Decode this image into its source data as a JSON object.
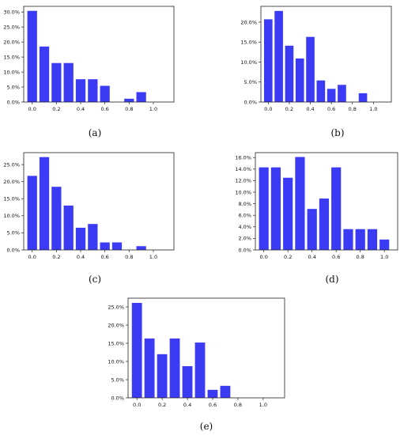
{
  "chart_data": [
    {
      "type": "bar",
      "caption": "(a)",
      "x": [
        0.0,
        0.1,
        0.2,
        0.3,
        0.4,
        0.5,
        0.6,
        0.7,
        0.8,
        0.9
      ],
      "values": [
        30.4,
        18.5,
        13.0,
        13.0,
        7.6,
        7.6,
        5.4,
        0.0,
        1.1,
        3.3
      ],
      "xticks": [
        "0.0",
        "0.2",
        "0.4",
        "0.6",
        "0.8",
        "1.0"
      ],
      "xtick_values": [
        0.0,
        0.2,
        0.4,
        0.6,
        0.8,
        1.0
      ],
      "yticks": [
        "0.0%",
        "5.0%",
        "10.0%",
        "15.0%",
        "20.0%",
        "25.0%",
        "30.0%"
      ],
      "ytick_values": [
        0,
        5,
        10,
        15,
        20,
        25,
        30
      ],
      "xlim": [
        -0.07,
        1.17
      ],
      "ylim": [
        0,
        31.9
      ],
      "bar_color": "#3b3bf6"
    },
    {
      "type": "bar",
      "caption": "(b)",
      "x": [
        0.0,
        0.1,
        0.2,
        0.3,
        0.4,
        0.5,
        0.6,
        0.7,
        0.8,
        0.9
      ],
      "values": [
        20.7,
        22.8,
        14.1,
        10.9,
        16.3,
        5.4,
        3.3,
        4.3,
        0.0,
        2.2
      ],
      "xticks": [
        "0.0",
        "0.2",
        "0.4",
        "0.6",
        "0.8",
        "1.0"
      ],
      "xtick_values": [
        0.0,
        0.2,
        0.4,
        0.6,
        0.8,
        1.0
      ],
      "yticks": [
        "0.0%",
        "5.0%",
        "10.0%",
        "15.0%",
        "20.0%"
      ],
      "ytick_values": [
        0,
        5,
        10,
        15,
        20
      ],
      "xlim": [
        -0.07,
        1.17
      ],
      "ylim": [
        0,
        23.95
      ],
      "bar_color": "#3b3bf6"
    },
    {
      "type": "bar",
      "caption": "(c)",
      "x": [
        0.0,
        0.1,
        0.2,
        0.3,
        0.4,
        0.5,
        0.6,
        0.7,
        0.8,
        0.9
      ],
      "values": [
        21.7,
        27.2,
        18.5,
        13.0,
        6.5,
        7.6,
        2.2,
        2.2,
        0.0,
        1.1
      ],
      "xticks": [
        "0.0",
        "0.2",
        "0.4",
        "0.6",
        "0.8",
        "1.0"
      ],
      "xtick_values": [
        0.0,
        0.2,
        0.4,
        0.6,
        0.8,
        1.0
      ],
      "yticks": [
        "0.0%",
        "5.0%",
        "10.0%",
        "15.0%",
        "20.0%",
        "25.0%"
      ],
      "ytick_values": [
        0,
        5,
        10,
        15,
        20,
        25
      ],
      "xlim": [
        -0.07,
        1.17
      ],
      "ylim": [
        0,
        28.5
      ],
      "bar_color": "#3b3bf6"
    },
    {
      "type": "bar",
      "caption": "(d)",
      "x": [
        0.0,
        0.1,
        0.2,
        0.3,
        0.4,
        0.5,
        0.6,
        0.7,
        0.8,
        0.9,
        1.0
      ],
      "values": [
        14.3,
        14.3,
        12.5,
        16.1,
        7.1,
        8.9,
        14.3,
        3.6,
        3.6,
        3.6,
        1.8
      ],
      "xticks": [
        "0.0",
        "0.2",
        "0.4",
        "0.6",
        "0.8",
        "1.0"
      ],
      "xtick_values": [
        0.0,
        0.2,
        0.4,
        0.6,
        0.8,
        1.0
      ],
      "yticks": [
        "0.0%",
        "2.0%",
        "4.0%",
        "6.0%",
        "8.0%",
        "10.0%",
        "12.0%",
        "14.0%",
        "16.0%"
      ],
      "ytick_values": [
        0,
        2,
        4,
        6,
        8,
        10,
        12,
        14,
        16
      ],
      "xlim": [
        -0.07,
        1.11
      ],
      "ylim": [
        0,
        16.85
      ],
      "bar_color": "#3b3bf6"
    },
    {
      "type": "bar",
      "caption": "(e)",
      "x": [
        0.0,
        0.1,
        0.2,
        0.3,
        0.4,
        0.5,
        0.6,
        0.7,
        0.8,
        0.9
      ],
      "values": [
        26.1,
        16.3,
        12.0,
        16.3,
        8.7,
        15.2,
        2.2,
        3.3,
        0.0,
        0.0
      ],
      "xticks": [
        "0.0",
        "0.2",
        "0.4",
        "0.6",
        "0.8",
        "1.0"
      ],
      "xtick_values": [
        0.0,
        0.2,
        0.4,
        0.6,
        0.8,
        1.0
      ],
      "yticks": [
        "0.0%",
        "5.0%",
        "10.0%",
        "15.0%",
        "20.0%",
        "25.0%"
      ],
      "ytick_values": [
        0,
        5,
        10,
        15,
        20,
        25
      ],
      "xlim": [
        -0.07,
        1.17
      ],
      "ylim": [
        0,
        27.4
      ],
      "bar_color": "#3b3bf6"
    }
  ]
}
